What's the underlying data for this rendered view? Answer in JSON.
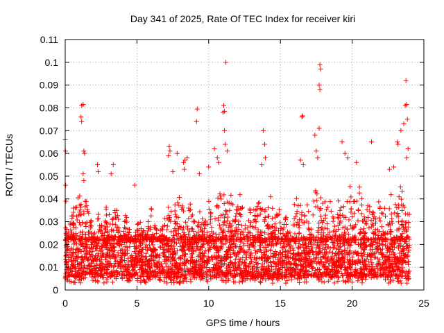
{
  "chart_data": {
    "type": "scatter",
    "title": "Day 341 of 2025, Rate Of TEC Index for receiver kiri",
    "xlabel": "GPS time / hours",
    "ylabel": "ROTI / TECUs",
    "xlim": [
      0,
      25
    ],
    "ylim": [
      0,
      0.11
    ],
    "xticks": [
      0,
      5,
      10,
      15,
      20,
      25
    ],
    "xtick_labels": [
      "0",
      "5",
      "10",
      "15",
      "20",
      "25"
    ],
    "yticks": [
      0,
      0.01,
      0.02,
      0.03,
      0.04,
      0.05,
      0.06,
      0.07,
      0.08,
      0.09,
      0.1,
      0.11
    ],
    "ytick_labels": [
      "0",
      "0.01",
      "0.02",
      "0.03",
      "0.04",
      "0.05",
      "0.06",
      "0.07",
      "0.08",
      "0.09",
      "0.1",
      "0.11"
    ],
    "grid": true,
    "legend": "none",
    "marker": "plus",
    "series_color": "#ff0000",
    "background_color": "#ffffff",
    "data_x_range": [
      0,
      24
    ],
    "baseline_band": [
      0.005,
      0.022
    ],
    "outliers": [
      {
        "x": 0.0,
        "y": 0.066
      },
      {
        "x": 0.02,
        "y": 0.061
      },
      {
        "x": 0.03,
        "y": 0.046
      },
      {
        "x": 0.05,
        "y": 0.039
      },
      {
        "x": 1.15,
        "y": 0.081
      },
      {
        "x": 1.25,
        "y": 0.0815
      },
      {
        "x": 1.1,
        "y": 0.076
      },
      {
        "x": 1.15,
        "y": 0.074
      },
      {
        "x": 1.3,
        "y": 0.061
      },
      {
        "x": 1.35,
        "y": 0.06
      },
      {
        "x": 1.25,
        "y": 0.051
      },
      {
        "x": 1.3,
        "y": 0.048
      },
      {
        "x": 2.25,
        "y": 0.055
      },
      {
        "x": 2.3,
        "y": 0.052
      },
      {
        "x": 3.35,
        "y": 0.055
      },
      {
        "x": 3.2,
        "y": 0.051
      },
      {
        "x": 4.85,
        "y": 0.046
      },
      {
        "x": 7.25,
        "y": 0.063
      },
      {
        "x": 7.3,
        "y": 0.061
      },
      {
        "x": 7.2,
        "y": 0.059
      },
      {
        "x": 7.8,
        "y": 0.06
      },
      {
        "x": 7.5,
        "y": 0.052
      },
      {
        "x": 8.25,
        "y": 0.056
      },
      {
        "x": 8.3,
        "y": 0.053
      },
      {
        "x": 8.35,
        "y": 0.057
      },
      {
        "x": 8.5,
        "y": 0.058
      },
      {
        "x": 9.2,
        "y": 0.0795
      },
      {
        "x": 9.15,
        "y": 0.074
      },
      {
        "x": 9.35,
        "y": 0.051
      },
      {
        "x": 10.0,
        "y": 0.054
      },
      {
        "x": 10.4,
        "y": 0.062
      },
      {
        "x": 10.6,
        "y": 0.058
      },
      {
        "x": 10.7,
        "y": 0.056
      },
      {
        "x": 11.05,
        "y": 0.081
      },
      {
        "x": 11.0,
        "y": 0.078
      },
      {
        "x": 11.1,
        "y": 0.0785
      },
      {
        "x": 11.2,
        "y": 0.1
      },
      {
        "x": 11.1,
        "y": 0.07
      },
      {
        "x": 11.15,
        "y": 0.064
      },
      {
        "x": 11.3,
        "y": 0.061
      },
      {
        "x": 13.8,
        "y": 0.07
      },
      {
        "x": 13.9,
        "y": 0.064
      },
      {
        "x": 13.95,
        "y": 0.058
      },
      {
        "x": 13.7,
        "y": 0.055
      },
      {
        "x": 16.5,
        "y": 0.076
      },
      {
        "x": 16.55,
        "y": 0.0765
      },
      {
        "x": 16.4,
        "y": 0.057
      },
      {
        "x": 16.6,
        "y": 0.055
      },
      {
        "x": 17.4,
        "y": 0.068
      },
      {
        "x": 17.5,
        "y": 0.061
      },
      {
        "x": 17.6,
        "y": 0.058
      },
      {
        "x": 17.7,
        "y": 0.071
      },
      {
        "x": 17.75,
        "y": 0.099
      },
      {
        "x": 17.8,
        "y": 0.097
      },
      {
        "x": 17.7,
        "y": 0.09
      },
      {
        "x": 17.75,
        "y": 0.088
      },
      {
        "x": 19.3,
        "y": 0.065
      },
      {
        "x": 19.5,
        "y": 0.06
      },
      {
        "x": 19.7,
        "y": 0.058
      },
      {
        "x": 20.3,
        "y": 0.056
      },
      {
        "x": 21.35,
        "y": 0.065
      },
      {
        "x": 22.6,
        "y": 0.053
      },
      {
        "x": 22.9,
        "y": 0.054
      },
      {
        "x": 23.15,
        "y": 0.065
      },
      {
        "x": 23.2,
        "y": 0.064
      },
      {
        "x": 23.4,
        "y": 0.07
      },
      {
        "x": 23.6,
        "y": 0.073
      },
      {
        "x": 23.7,
        "y": 0.081
      },
      {
        "x": 23.8,
        "y": 0.0815
      },
      {
        "x": 23.75,
        "y": 0.092
      },
      {
        "x": 23.85,
        "y": 0.075
      },
      {
        "x": 23.9,
        "y": 0.062
      },
      {
        "x": 23.8,
        "y": 0.058
      }
    ],
    "peaks": [
      {
        "x": 0.05,
        "y": 0.028
      },
      {
        "x": 0.7,
        "y": 0.04
      },
      {
        "x": 1.0,
        "y": 0.045
      },
      {
        "x": 1.5,
        "y": 0.042
      },
      {
        "x": 2.2,
        "y": 0.036
      },
      {
        "x": 2.9,
        "y": 0.04
      },
      {
        "x": 3.5,
        "y": 0.038
      },
      {
        "x": 4.2,
        "y": 0.034
      },
      {
        "x": 5.2,
        "y": 0.033
      },
      {
        "x": 6.0,
        "y": 0.036
      },
      {
        "x": 6.9,
        "y": 0.033
      },
      {
        "x": 7.4,
        "y": 0.042
      },
      {
        "x": 7.9,
        "y": 0.045
      },
      {
        "x": 8.6,
        "y": 0.042
      },
      {
        "x": 9.3,
        "y": 0.038
      },
      {
        "x": 10.0,
        "y": 0.04
      },
      {
        "x": 10.7,
        "y": 0.045
      },
      {
        "x": 11.3,
        "y": 0.048
      },
      {
        "x": 12.1,
        "y": 0.047
      },
      {
        "x": 12.7,
        "y": 0.042
      },
      {
        "x": 13.5,
        "y": 0.045
      },
      {
        "x": 14.2,
        "y": 0.044
      },
      {
        "x": 14.9,
        "y": 0.04
      },
      {
        "x": 15.5,
        "y": 0.036
      },
      {
        "x": 16.2,
        "y": 0.044
      },
      {
        "x": 16.9,
        "y": 0.04
      },
      {
        "x": 17.6,
        "y": 0.048
      },
      {
        "x": 18.3,
        "y": 0.045
      },
      {
        "x": 19.0,
        "y": 0.042
      },
      {
        "x": 19.8,
        "y": 0.049
      },
      {
        "x": 20.5,
        "y": 0.046
      },
      {
        "x": 21.2,
        "y": 0.045
      },
      {
        "x": 21.9,
        "y": 0.041
      },
      {
        "x": 22.6,
        "y": 0.045
      },
      {
        "x": 23.3,
        "y": 0.048
      },
      {
        "x": 23.9,
        "y": 0.04
      }
    ]
  }
}
